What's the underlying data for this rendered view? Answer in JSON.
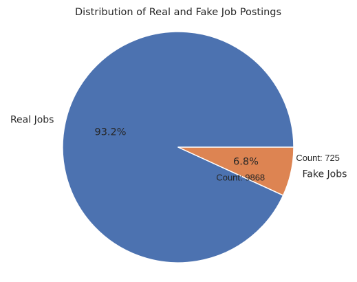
{
  "chart_data": {
    "type": "pie",
    "title": "Distribution of Real and Fake Job Postings",
    "slices": [
      {
        "label": "Real Jobs",
        "value": 9868,
        "percent_label": "93.2%",
        "count_label": "Count: 9868",
        "color": "#4c72b0"
      },
      {
        "label": "Fake Jobs",
        "value": 725,
        "percent_label": "6.8%",
        "count_label": "Count: 725",
        "color": "#dd8452"
      }
    ]
  }
}
